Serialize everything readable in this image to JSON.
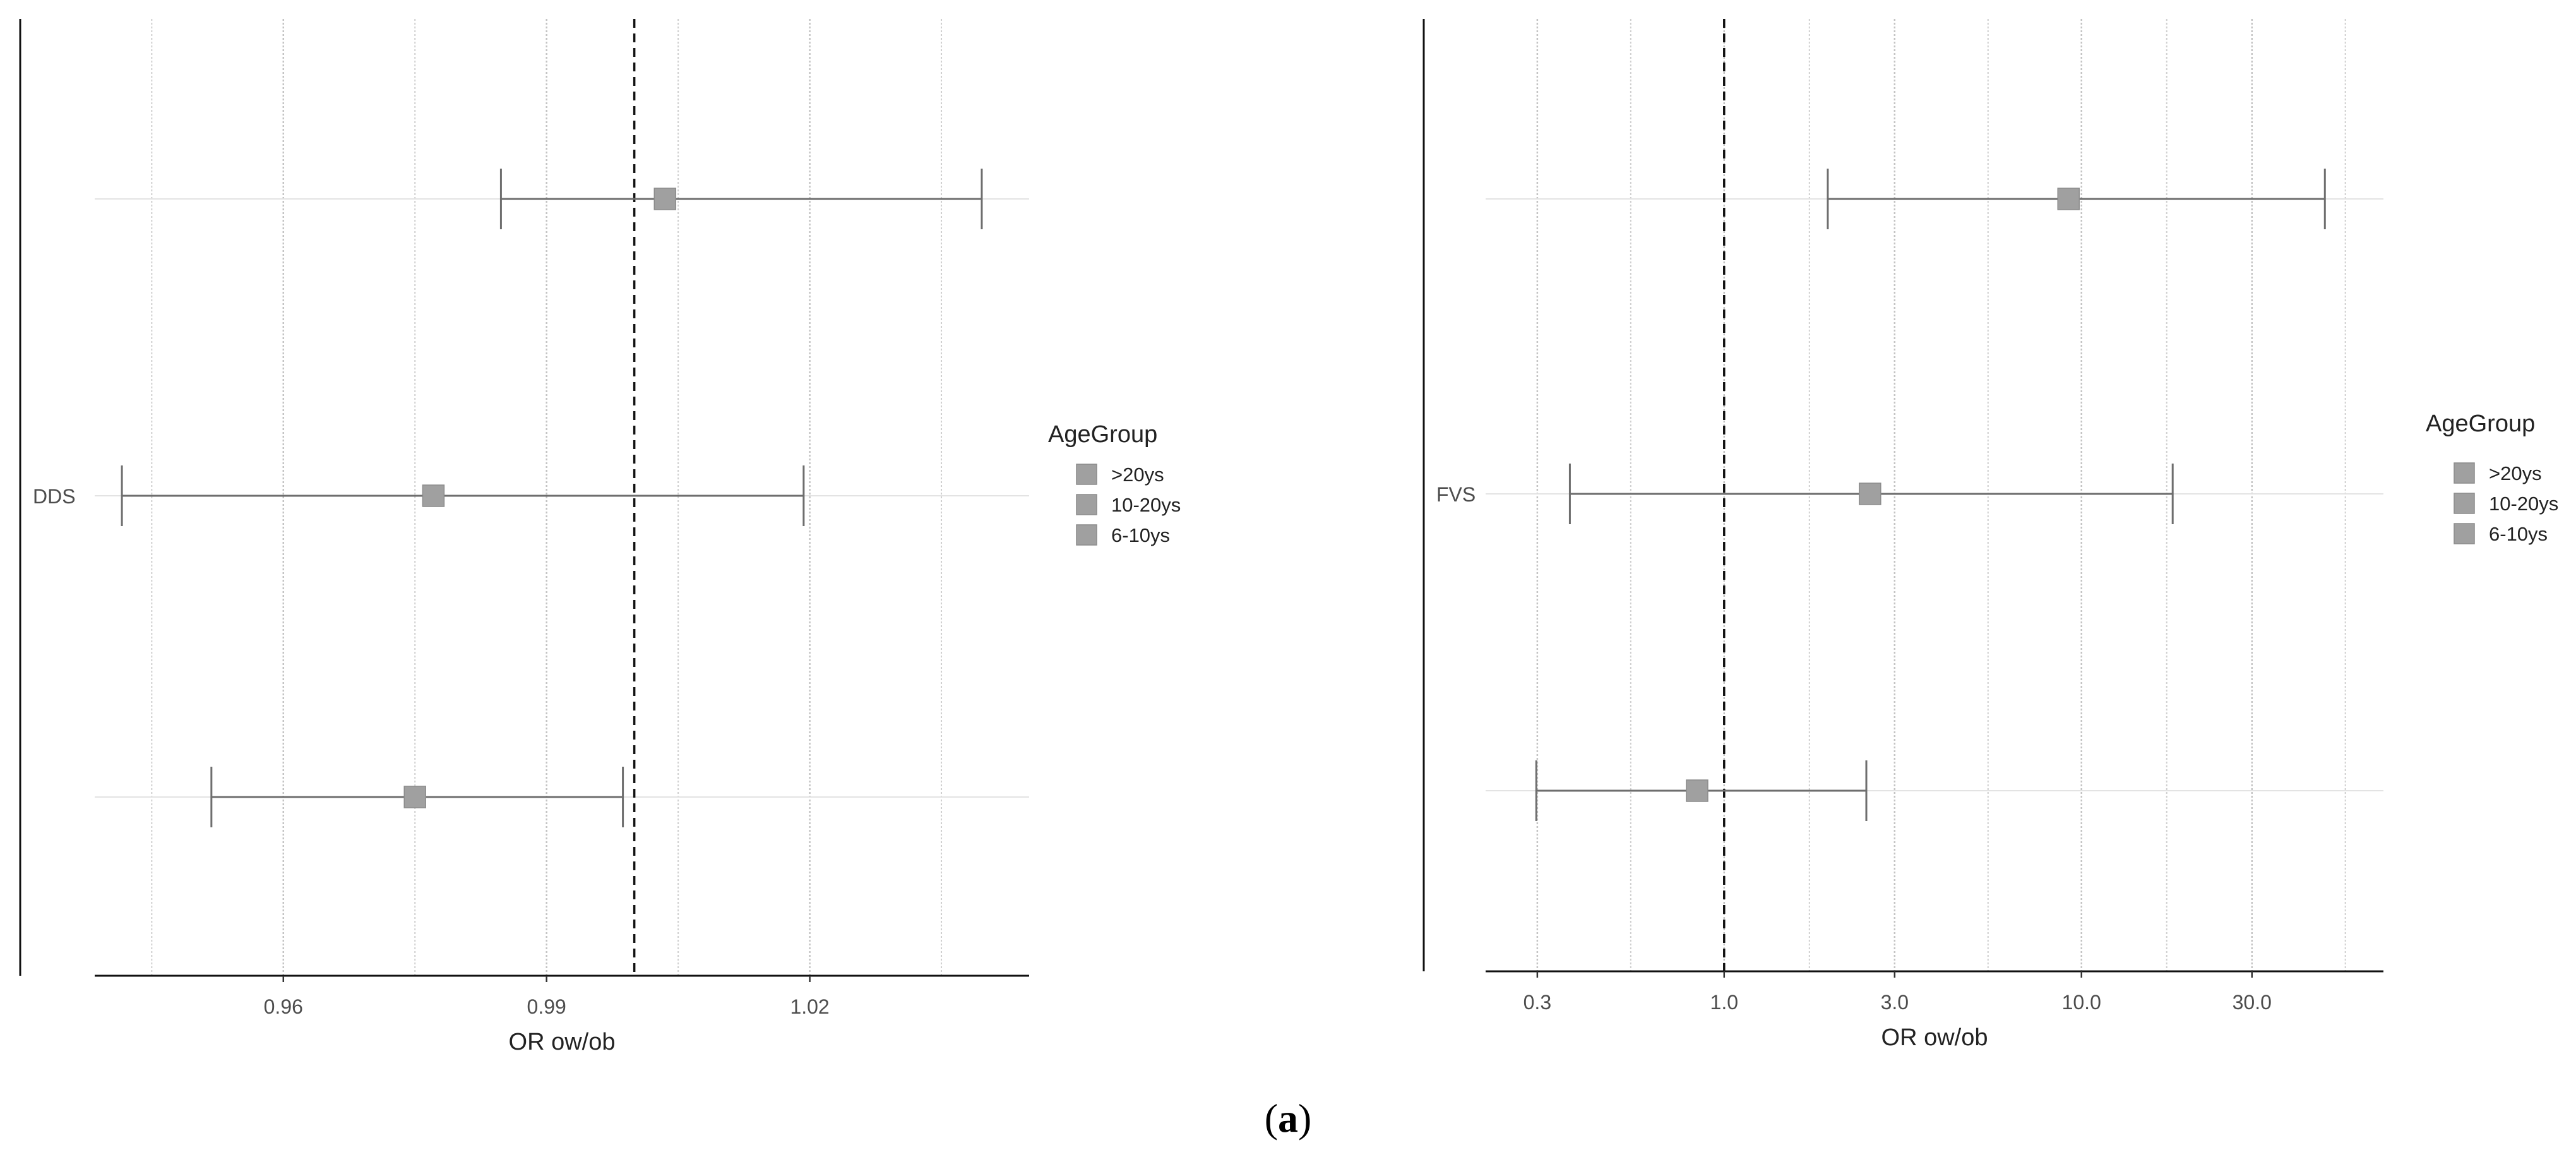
{
  "figure": {
    "caption_open": "(",
    "caption_letter": "a",
    "caption_close": ")"
  },
  "chart_data": [
    {
      "type": "forest",
      "ylabel_tick": "DDS",
      "xlabel": "OR ow/ob",
      "xlim": [
        0.9385,
        1.045
      ],
      "x_scale": "linear",
      "x_ticks": [
        0.96,
        0.99,
        1.02
      ],
      "x_tick_labels": [
        "0.96",
        "0.99",
        "1.02"
      ],
      "reference_line": 1.0,
      "grid": true,
      "legend": {
        "title": "AgeGroup",
        "position": "right",
        "entries": [
          ">20ys",
          "10-20ys",
          "6-10ys"
        ]
      },
      "series": [
        {
          "name": ">20ys",
          "estimate": 1.0035,
          "lower": 0.9848,
          "upper": 1.0396
        },
        {
          "name": "10-20ys",
          "estimate": 0.9771,
          "lower": 0.9416,
          "upper": 1.0193
        },
        {
          "name": "6-10ys",
          "estimate": 0.975,
          "lower": 0.9518,
          "upper": 0.9987
        }
      ],
      "marker_color": "#a0a0a0",
      "line_color": "#6e6e6e"
    },
    {
      "type": "forest",
      "ylabel_tick": "FVS",
      "xlabel": "OR ow/ob",
      "xlim": [
        0.215,
        70
      ],
      "x_scale": "log",
      "x_ticks": [
        0.3,
        1.0,
        3.0,
        10.0,
        30.0
      ],
      "x_tick_labels": [
        "0.3",
        "1.0",
        "3.0",
        "10.0",
        "30.0"
      ],
      "reference_line": 1.0,
      "grid": true,
      "legend": {
        "title": "AgeGroup",
        "position": "right",
        "entries": [
          ">20ys",
          "10-20ys",
          "6-10ys"
        ]
      },
      "series": [
        {
          "name": ">20ys",
          "estimate": 9.2,
          "lower": 1.95,
          "upper": 48
        },
        {
          "name": "10-20ys",
          "estimate": 2.56,
          "lower": 0.37,
          "upper": 18
        },
        {
          "name": "6-10ys",
          "estimate": 0.84,
          "lower": 0.298,
          "upper": 2.5
        }
      ],
      "marker_color": "#a0a0a0",
      "line_color": "#6e6e6e"
    }
  ]
}
